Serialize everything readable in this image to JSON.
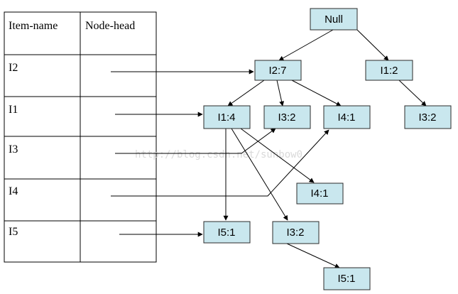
{
  "table": {
    "headers": {
      "item": "Item-name",
      "head": "Node-head"
    },
    "rows": [
      {
        "item": "I2"
      },
      {
        "item": "I1"
      },
      {
        "item": "I3"
      },
      {
        "item": "I4"
      },
      {
        "item": "I5"
      }
    ]
  },
  "tree": {
    "nodes": {
      "root": "Null",
      "i2": "I2:7",
      "i1_top": "I1:2",
      "i3_right": "I3:2",
      "i1_4": "I1:4",
      "i3_2a": "I3:2",
      "i4_1a": "I4:1",
      "i4_1b": "I4:1",
      "i5_1a": "I5:1",
      "i3_2b": "I3:2",
      "i5_1b": "I5:1"
    }
  },
  "watermark": "http://blog.csdn.net/sunbow0"
}
